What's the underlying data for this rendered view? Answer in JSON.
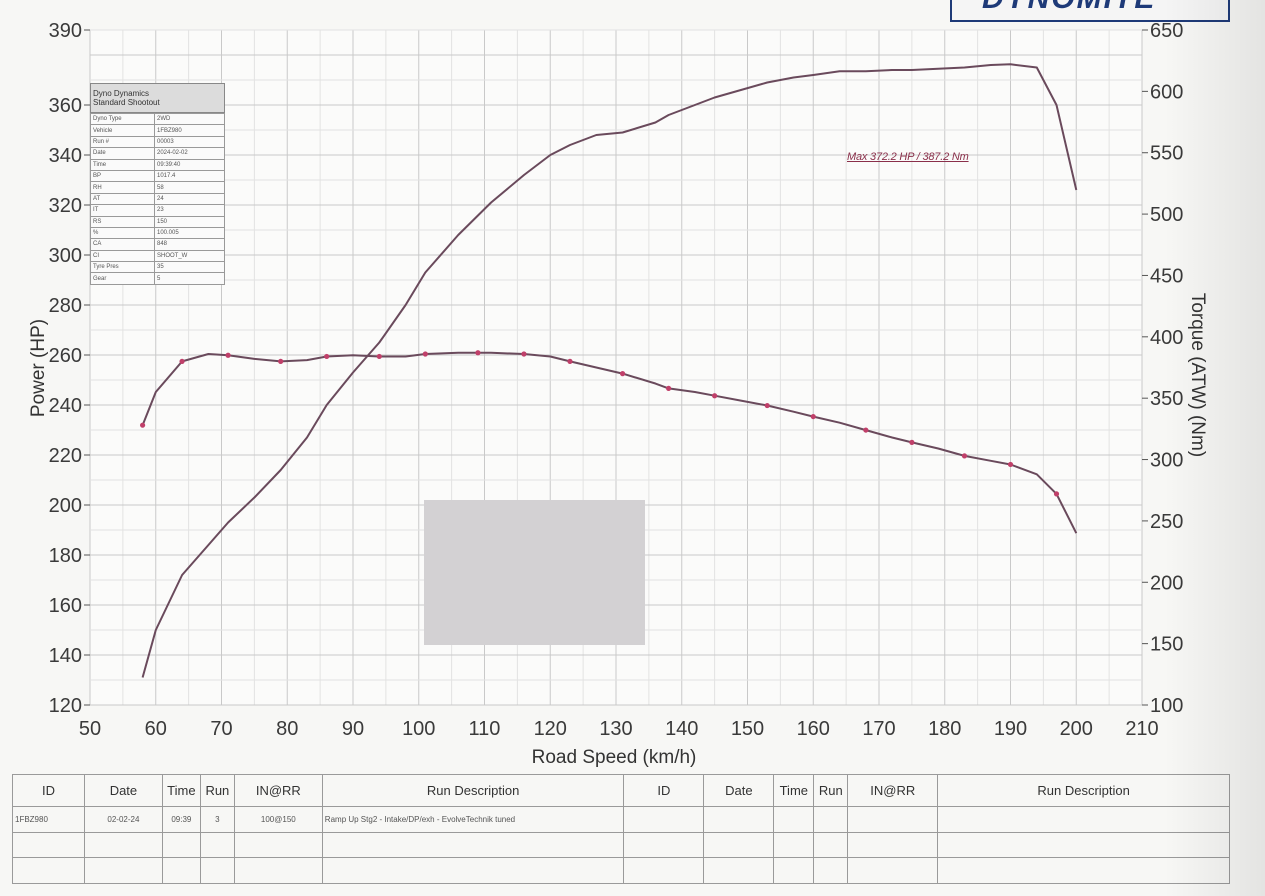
{
  "run_sheet": {
    "brand": "DYNOMITE",
    "info_box": {
      "title_line1": "Dyno Dynamics",
      "title_line2": "Standard Shootout",
      "rows": [
        {
          "label": "Dyno Type",
          "value": "2WD"
        },
        {
          "label": "Vehicle",
          "value": "1FBZ980"
        },
        {
          "label": "Run #",
          "value": "00003"
        },
        {
          "label": "Date",
          "value": "2024-02-02"
        },
        {
          "label": "Time",
          "value": "09:39:40"
        },
        {
          "label": "BP",
          "value": "1017.4"
        },
        {
          "label": "RH",
          "value": "58"
        },
        {
          "label": "AT",
          "value": "24"
        },
        {
          "label": "IT",
          "value": "23"
        },
        {
          "label": "RS",
          "value": "150"
        },
        {
          "label": "%",
          "value": "100.005"
        },
        {
          "label": "CA",
          "value": "848"
        },
        {
          "label": "CI",
          "value": "SHOOT_W"
        },
        {
          "label": "Tyre Pres",
          "value": "35"
        },
        {
          "label": "Gear",
          "value": "5"
        }
      ]
    },
    "max_annotation": "Max 372.2 HP  / 387.2 Nm",
    "run_table": {
      "headers": [
        "ID",
        "Date",
        "Time",
        "Run",
        "IN@RR",
        "Run Description",
        "ID",
        "Date",
        "Time",
        "Run",
        "IN@RR",
        "Run Description"
      ],
      "rows": [
        [
          "1FBZ980",
          "02-02-24",
          "09:39",
          "3",
          "100@150",
          "Ramp Up Stg2 - Intake/DP/exh - EvolveTechnik tuned",
          "",
          "",
          "",
          "",
          "",
          ""
        ],
        [
          "",
          "",
          "",
          "",
          "",
          "",
          "",
          "",
          "",
          "",
          "",
          ""
        ],
        [
          "",
          "",
          "",
          "",
          "",
          "",
          "",
          "",
          "",
          "",
          "",
          ""
        ]
      ]
    }
  },
  "chart_data": {
    "type": "line",
    "xlabel": "Road Speed (km/h)",
    "ylabel": "Power (HP)",
    "y2label": "Torque (ATW) (Nm)",
    "xlim": [
      50,
      210
    ],
    "ylim": [
      120,
      390
    ],
    "y2lim": [
      100,
      650
    ],
    "x_ticks": [
      50,
      60,
      70,
      80,
      90,
      100,
      110,
      120,
      130,
      140,
      150,
      160,
      170,
      180,
      190,
      200,
      210
    ],
    "y_ticks": [
      120,
      140,
      160,
      180,
      200,
      220,
      240,
      260,
      280,
      300,
      320,
      340,
      360,
      390
    ],
    "y2_ticks": [
      100,
      150,
      200,
      250,
      300,
      350,
      400,
      450,
      500,
      550,
      600,
      650
    ],
    "grid": true,
    "series": [
      {
        "role": "power",
        "axis": "left",
        "color": "#6a4a5c",
        "x": [
          58,
          60,
          64,
          68,
          71,
          75,
          79,
          83,
          86,
          90,
          94,
          98,
          101,
          106,
          111,
          116,
          120,
          123,
          127,
          131,
          136,
          138,
          142,
          145,
          149,
          153,
          157,
          160,
          164,
          168,
          172,
          175,
          179,
          183,
          187,
          190,
          194,
          197,
          200
        ],
        "y": [
          131,
          150,
          172,
          184,
          193,
          203,
          214,
          227,
          240,
          253,
          265,
          280,
          293,
          308,
          321,
          332,
          340,
          344,
          348,
          349,
          353,
          356,
          360,
          363,
          366,
          369,
          371,
          372,
          373.5,
          373.5,
          374,
          374,
          374.5,
          375,
          376,
          376.3,
          375,
          360,
          326
        ]
      },
      {
        "role": "torque",
        "axis": "right",
        "color": "#6a4a5c",
        "x": [
          58,
          60,
          64,
          68,
          71,
          75,
          79,
          83,
          86,
          90,
          94,
          98,
          101,
          106,
          111,
          116,
          120,
          123,
          127,
          131,
          136,
          138,
          142,
          145,
          149,
          153,
          157,
          160,
          164,
          168,
          172,
          175,
          179,
          183,
          187,
          190,
          194,
          197,
          200
        ],
        "y": [
          328,
          355,
          380,
          386,
          385,
          382,
          380,
          381,
          384,
          385,
          384,
          384,
          386,
          387,
          387,
          386,
          384,
          380,
          375,
          370,
          362,
          358,
          355,
          352,
          348,
          344,
          339,
          335,
          330,
          324,
          318,
          314,
          309,
          303,
          299,
          296,
          288,
          272,
          240
        ]
      }
    ],
    "marker_x": [
      58,
      64,
      71,
      79,
      86,
      94,
      101,
      109,
      116,
      123,
      131,
      138,
      145,
      153,
      160,
      168,
      175,
      183,
      190,
      197
    ]
  }
}
